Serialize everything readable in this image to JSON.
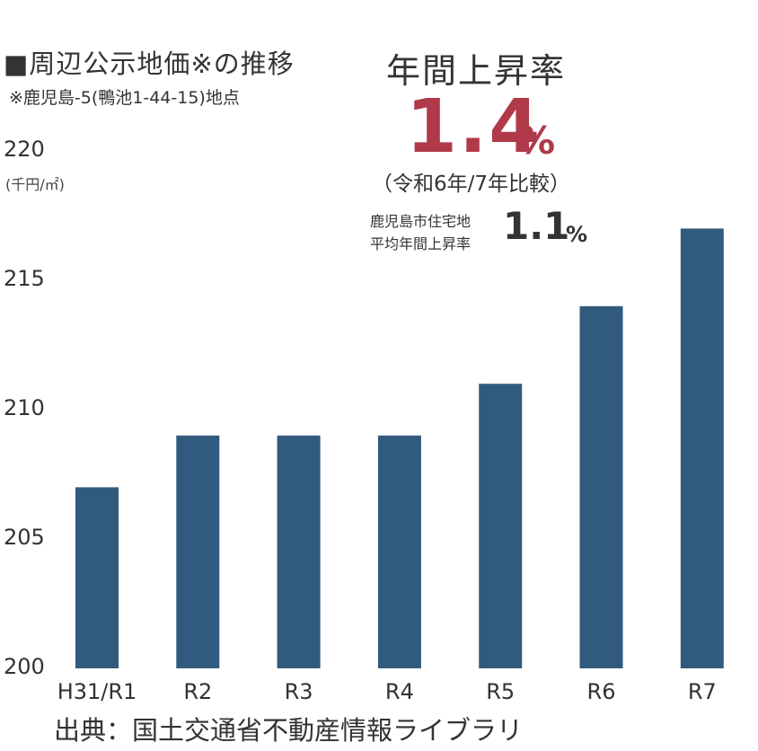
{
  "chart_data": {
    "type": "bar",
    "title": "■周辺公示地価※の推移",
    "subtitle": "※鹿児島-5(鴨池1-44-15)地点",
    "ylabel": "(千円/㎡)",
    "categories": [
      "H31/R1",
      "R2",
      "R3",
      "R4",
      "R5",
      "R6",
      "R7"
    ],
    "values": [
      207,
      209,
      209,
      209,
      211,
      214,
      217
    ],
    "ylim": [
      200,
      220
    ],
    "yticks": [
      "200",
      "205",
      "210",
      "215",
      "220"
    ],
    "bar_color": "#315b7e",
    "grid": false,
    "legend": "none"
  },
  "headline": {
    "label": "年間上昇率",
    "rate": "1.4",
    "unit": "%",
    "comparison": "（令和6年/7年比較）"
  },
  "city": {
    "line1": "鹿児島市住宅地",
    "line2": "平均年間上昇率",
    "rate": "1.1",
    "unit": "%"
  },
  "source": "出典：国土交通省不動産情報ライブラリ",
  "colors": {
    "accent": "#b03a4a",
    "bar": "#315b7e"
  }
}
